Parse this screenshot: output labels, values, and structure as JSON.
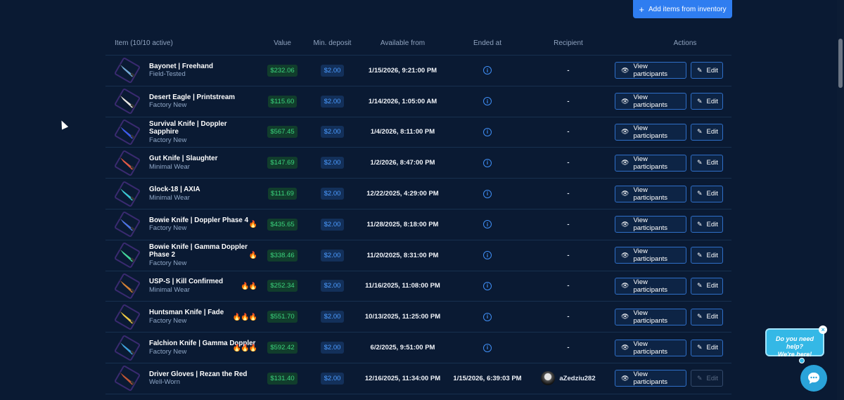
{
  "toolbar": {
    "add_label": "Add items from inventory",
    "add_icon": "plus-icon"
  },
  "table": {
    "columns": {
      "item": "Item (10/10 active)",
      "value": "Value",
      "min_deposit": "Min. deposit",
      "available_from": "Available from",
      "ended_at": "Ended at",
      "recipient": "Recipient",
      "actions": "Actions"
    },
    "view_label": "View participants",
    "edit_label": "Edit",
    "rows": [
      {
        "name": "Bayonet | Freehand",
        "condition": "Field-Tested",
        "value": "$232.06",
        "min": "$2.00",
        "available": "1/15/2026, 9:21:00 PM",
        "ended": "",
        "recipient": "-",
        "fire": "",
        "color": "#6ea7d8"
      },
      {
        "name": "Desert Eagle | Printstream",
        "condition": "Factory New",
        "value": "$115.60",
        "min": "$2.00",
        "available": "1/14/2026, 1:05:00 AM",
        "ended": "",
        "recipient": "-",
        "fire": "",
        "color": "#e8e8e8"
      },
      {
        "name": "Survival Knife | Doppler Sapphire",
        "condition": "Factory New",
        "value": "$567.45",
        "min": "$2.00",
        "available": "1/4/2026, 8:11:00 PM",
        "ended": "",
        "recipient": "-",
        "fire": "",
        "color": "#3a5cf0"
      },
      {
        "name": "Gut Knife | Slaughter",
        "condition": "Minimal Wear",
        "value": "$147.69",
        "min": "$2.00",
        "available": "1/2/2026, 8:47:00 PM",
        "ended": "",
        "recipient": "-",
        "fire": "",
        "color": "#e05a4a"
      },
      {
        "name": "Glock-18 | AXIA",
        "condition": "Minimal Wear",
        "value": "$111.69",
        "min": "$2.00",
        "available": "12/22/2025, 4:29:00 PM",
        "ended": "",
        "recipient": "-",
        "fire": "",
        "color": "#38c6d8"
      },
      {
        "name": "Bowie Knife | Doppler Phase 4",
        "condition": "Factory New",
        "value": "$435.65",
        "min": "$2.00",
        "available": "11/28/2025, 8:18:00 PM",
        "ended": "",
        "recipient": "-",
        "fire": "🔥",
        "color": "#4a74e8"
      },
      {
        "name": "Bowie Knife | Gamma Doppler Phase 2",
        "condition": "Factory New",
        "value": "$338.46",
        "min": "$2.00",
        "available": "11/20/2025, 8:31:00 PM",
        "ended": "",
        "recipient": "-",
        "fire": "🔥",
        "color": "#3fd6a0"
      },
      {
        "name": "USP-S | Kill Confirmed",
        "condition": "Minimal Wear",
        "value": "$252.34",
        "min": "$2.00",
        "available": "11/16/2025, 11:08:00 PM",
        "ended": "",
        "recipient": "-",
        "fire": "🔥🔥",
        "color": "#d0803a"
      },
      {
        "name": "Huntsman Knife | Fade",
        "condition": "Factory New",
        "value": "$551.70",
        "min": "$2.00",
        "available": "10/13/2025, 11:25:00 PM",
        "ended": "",
        "recipient": "-",
        "fire": "🔥🔥🔥",
        "color": "#e8c84a"
      },
      {
        "name": "Falchion Knife | Gamma Doppler",
        "condition": "Factory New",
        "value": "$592.42",
        "min": "$2.00",
        "available": "6/2/2025, 9:51:00 PM",
        "ended": "",
        "recipient": "-",
        "fire": "🔥🔥🔥",
        "color": "#3aa0e0"
      },
      {
        "name": "Driver Gloves | Rezan the Red",
        "condition": "Well-Worn",
        "value": "$131.40",
        "min": "$2.00",
        "available": "12/16/2025, 11:34:00 PM",
        "ended": "1/15/2026, 6:39:03 PM",
        "recipient": "aZedziu282",
        "fire": "",
        "color": "#c0563a"
      }
    ]
  },
  "help": {
    "line1": "Do you need help?",
    "line2": "We're here!",
    "close": "×"
  }
}
